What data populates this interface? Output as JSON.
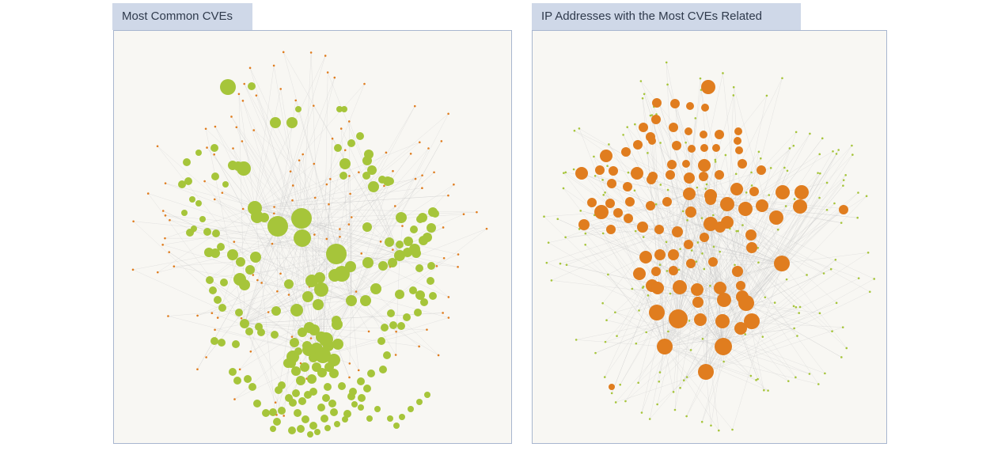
{
  "panels": [
    {
      "title": "Most Common CVEs",
      "highlight": "CVE nodes",
      "highlight_color": "#a6c53a",
      "context_color": "#e07d1f",
      "edge_color": "#c9c9c9"
    },
    {
      "title": "IP Addresses with the Most CVEs Related",
      "highlight": "IP address nodes",
      "highlight_color": "#e07d1f",
      "context_color": "#a6c53a",
      "edge_color": "#c9c9c9"
    }
  ]
}
